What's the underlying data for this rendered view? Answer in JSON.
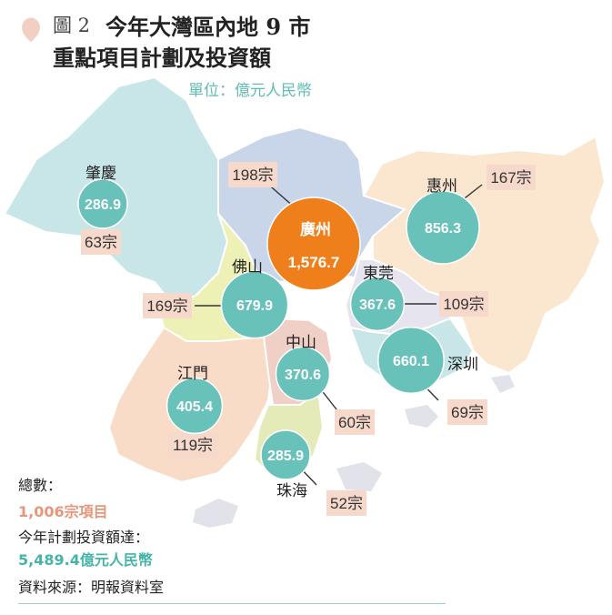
{
  "header": {
    "figure_label": "圖 2",
    "title_line1": "今年大灣區內地 9 市",
    "title_line2": "重點項目計劃及投資額",
    "unit": "單位：億元人民幣"
  },
  "chart_data": {
    "type": "bubble-map",
    "title": "今年大灣區內地 9 市重點項目計劃及投資額",
    "unit": "單位：億元人民幣",
    "cities": [
      {
        "name": "廣州",
        "investment": "1,576.7",
        "value": 1576.7,
        "projects": "198宗",
        "project_count": 198,
        "highlight": true
      },
      {
        "name": "惠州",
        "investment": "856.3",
        "value": 856.3,
        "projects": "167宗",
        "project_count": 167,
        "highlight": false
      },
      {
        "name": "肇慶",
        "investment": "286.9",
        "value": 286.9,
        "projects": "63宗",
        "project_count": 63,
        "highlight": false
      },
      {
        "name": "佛山",
        "investment": "679.9",
        "value": 679.9,
        "projects": "169宗",
        "project_count": 169,
        "highlight": false
      },
      {
        "name": "東莞",
        "investment": "367.6",
        "value": 367.6,
        "projects": "109宗",
        "project_count": 109,
        "highlight": false
      },
      {
        "name": "中山",
        "investment": "370.6",
        "value": 370.6,
        "projects": "60宗",
        "project_count": 60,
        "highlight": false
      },
      {
        "name": "深圳",
        "investment": "660.1",
        "value": 660.1,
        "projects": "69宗",
        "project_count": 69,
        "highlight": false
      },
      {
        "name": "江門",
        "investment": "405.4",
        "value": 405.4,
        "projects": "119宗",
        "project_count": 119,
        "highlight": false
      },
      {
        "name": "珠海",
        "investment": "285.9",
        "value": 285.9,
        "projects": "52宗",
        "project_count": 52,
        "highlight": false
      }
    ]
  },
  "footer": {
    "total_label": "總數：",
    "total_projects": "1,006宗項目",
    "investment_label": "今年計劃投資額達：",
    "total_investment": "5,489.4億元人民幣",
    "source": "資料來源：明報資料室"
  },
  "colors": {
    "teal": "#68c2b9",
    "orange": "#ef7f1a",
    "tag_bg": "#f7d9cc",
    "teal_text": "#5fbdb2",
    "orange_text": "#e8967b"
  }
}
